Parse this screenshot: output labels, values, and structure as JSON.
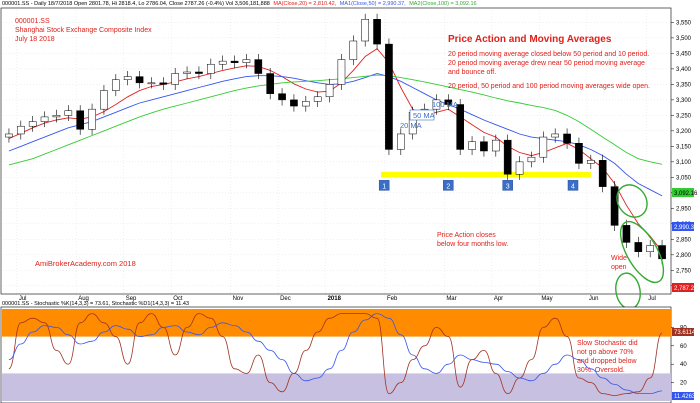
{
  "header": {
    "line1": "000001.SS - Daily 18/7/2018 Open 2801.78, Hi 2818.4, Lo 2786.04, Close 2787.26 (-0.4%) Vol 3,506,181,888",
    "ma20": "MA(Close,20) = 2,810.42,",
    "ma50": "MA1(Close,50) = 2,990.37,",
    "ma100": "MA2(Close,100) = 3,092.16",
    "lower": "000001.SS - Stochastic %K(14,3,3) = 73.61, Stochastic %D1(14,3,3) = 11.43"
  },
  "info": {
    "ticker": "000001.SS",
    "name": "Shanghai Stock Exchange Composite Index",
    "date": "July 18 2018"
  },
  "annotations": {
    "title": "Price Action and Moving Averages",
    "p1": "20 period moving average closed below 50 period and 10 period.",
    "p2a": "20 period moving average drew near 50 period moving average",
    "p2b": "and bounce off.",
    "p3": "20 period, 50 period and 100 period moving averages wide open.",
    "ma100": "100 MA",
    "ma50": "50 MA",
    "ma20": "20 MA",
    "pa1": "Price Action closes",
    "pa2": "below four months low.",
    "wide1": "Wide",
    "wide2": "open",
    "stoch1": "Slow Stochastic did",
    "stoch2": "not go above 70%",
    "stoch3": "and dropped below",
    "stoch4": "30%. Oversold.",
    "watermark": "AmiBrokerAcademy.com  2018",
    "markers": [
      "1",
      "2",
      "3",
      "4"
    ]
  },
  "price_axis": {
    "ticks": [
      "3,550",
      "3,500",
      "3,450",
      "3,400",
      "3,350",
      "3,300",
      "3,250",
      "3,200",
      "3,150",
      "3,100",
      "3,050",
      "3,000",
      "2,950",
      "2,900",
      "2,850",
      "2,800",
      "2,750",
      "2,700"
    ],
    "labels": {
      "ma100": "3,092.16",
      "ma50": "2,990.37",
      "close": "2,787.26"
    }
  },
  "stoch_axis": {
    "ticks": [
      "80",
      "60",
      "40",
      "20"
    ],
    "labels": {
      "k": "73.6114",
      "d": "11.4263"
    }
  },
  "x_axis": {
    "labels": [
      "Jul",
      "Aug",
      "Sep",
      "Oct",
      "Nov",
      "Dec",
      "2018",
      "Feb",
      "Mar",
      "Apr",
      "May",
      "Jun",
      "Jul"
    ]
  },
  "colors": {
    "ma20": "#e02020",
    "ma50": "#3355ee",
    "ma100": "#33cc33",
    "support": "#ffff00",
    "overbought": "#ff8c00",
    "oversold": "#c8c0e0",
    "stochK": "#a03020",
    "stochD": "#3355ee",
    "ann": "#e0201a",
    "marker": "#3a6fc8"
  },
  "chart_data": [
    {
      "type": "candlestick",
      "title": "Shanghai Stock Exchange Composite Index",
      "ylim": [
        2680,
        3590
      ],
      "x": [
        "2017-06-26",
        "2017-07-03",
        "2017-07-10",
        "2017-07-17",
        "2017-07-24",
        "2017-07-31",
        "2017-08-07",
        "2017-08-14",
        "2017-08-21",
        "2017-08-28",
        "2017-09-04",
        "2017-09-11",
        "2017-09-18",
        "2017-09-25",
        "2017-10-02",
        "2017-10-09",
        "2017-10-16",
        "2017-10-23",
        "2017-10-30",
        "2017-11-06",
        "2017-11-13",
        "2017-11-20",
        "2017-11-27",
        "2017-12-04",
        "2017-12-11",
        "2017-12-18",
        "2017-12-25",
        "2018-01-01",
        "2018-01-08",
        "2018-01-15",
        "2018-01-22",
        "2018-01-29",
        "2018-02-05",
        "2018-02-12",
        "2018-02-19",
        "2018-02-26",
        "2018-03-05",
        "2018-03-12",
        "2018-03-19",
        "2018-03-26",
        "2018-04-02",
        "2018-04-09",
        "2018-04-16",
        "2018-04-23",
        "2018-04-30",
        "2018-05-07",
        "2018-05-14",
        "2018-05-21",
        "2018-05-28",
        "2018-06-04",
        "2018-06-11",
        "2018-06-18",
        "2018-06-25",
        "2018-07-02",
        "2018-07-09",
        "2018-07-16"
      ],
      "close": [
        3190,
        3215,
        3230,
        3245,
        3250,
        3265,
        3205,
        3270,
        3330,
        3365,
        3375,
        3355,
        3355,
        3350,
        3385,
        3390,
        3385,
        3415,
        3425,
        3420,
        3430,
        3385,
        3320,
        3300,
        3280,
        3295,
        3310,
        3350,
        3430,
        3490,
        3560,
        3480,
        3140,
        3190,
        3260,
        3270,
        3300,
        3285,
        3140,
        3165,
        3135,
        3170,
        3060,
        3100,
        3115,
        3180,
        3190,
        3160,
        3095,
        3105,
        3020,
        2895,
        2840,
        2810,
        2830,
        2787
      ],
      "series": [
        {
          "name": "20 MA",
          "values": [
            3175,
            3192,
            3210,
            3225,
            3235,
            3242,
            3238,
            3245,
            3262,
            3285,
            3310,
            3330,
            3343,
            3350,
            3358,
            3368,
            3375,
            3385,
            3395,
            3403,
            3410,
            3408,
            3395,
            3375,
            3352,
            3335,
            3325,
            3328,
            3355,
            3395,
            3440,
            3465,
            3420,
            3340,
            3270,
            3250,
            3260,
            3270,
            3245,
            3220,
            3195,
            3180,
            3150,
            3130,
            3120,
            3130,
            3145,
            3160,
            3140,
            3110,
            3080,
            3030,
            2960,
            2900,
            2860,
            2810
          ]
        },
        {
          "name": "50 MA",
          "values": [
            3135,
            3150,
            3165,
            3180,
            3195,
            3210,
            3220,
            3230,
            3245,
            3260,
            3275,
            3290,
            3300,
            3310,
            3320,
            3330,
            3340,
            3350,
            3360,
            3368,
            3375,
            3378,
            3378,
            3375,
            3370,
            3362,
            3355,
            3350,
            3352,
            3360,
            3372,
            3385,
            3375,
            3360,
            3340,
            3320,
            3300,
            3285,
            3270,
            3252,
            3235,
            3220,
            3205,
            3190,
            3180,
            3175,
            3170,
            3165,
            3155,
            3140,
            3120,
            3095,
            3060,
            3030,
            3010,
            2990
          ]
        },
        {
          "name": "100 MA",
          "values": [
            3090,
            3100,
            3110,
            3125,
            3140,
            3155,
            3170,
            3185,
            3200,
            3215,
            3230,
            3245,
            3258,
            3270,
            3280,
            3290,
            3300,
            3310,
            3320,
            3330,
            3338,
            3345,
            3350,
            3355,
            3358,
            3360,
            3362,
            3365,
            3368,
            3372,
            3376,
            3380,
            3378,
            3372,
            3365,
            3358,
            3350,
            3342,
            3333,
            3325,
            3316,
            3306,
            3297,
            3290,
            3282,
            3275,
            3266,
            3250,
            3230,
            3205,
            3180,
            3155,
            3130,
            3110,
            3100,
            3092
          ]
        }
      ],
      "support_range": [
        3050,
        3068
      ],
      "markers": [
        "1",
        "2",
        "3",
        "4"
      ],
      "annotations": [
        "100 MA",
        "50 MA",
        "20 MA",
        "Wide open",
        "Price Action closes below four months low."
      ]
    },
    {
      "type": "line",
      "title": "Stochastic",
      "ylim": [
        0,
        100
      ],
      "overbought": 70,
      "oversold": 30,
      "series": [
        {
          "name": "Stochastic %K(14,3,3)",
          "values": [
            35,
            85,
            90,
            85,
            55,
            40,
            85,
            95,
            85,
            70,
            40,
            85,
            95,
            80,
            50,
            80,
            95,
            90,
            70,
            35,
            30,
            50,
            20,
            10,
            30,
            55,
            75,
            90,
            95,
            95,
            95,
            90,
            8,
            20,
            45,
            60,
            80,
            70,
            15,
            45,
            55,
            30,
            8,
            25,
            45,
            80,
            90,
            70,
            25,
            20,
            8,
            6,
            8,
            10,
            25,
            74
          ]
        },
        {
          "name": "Stochastic %D(14,3,3)",
          "values": [
            45,
            62,
            75,
            82,
            80,
            72,
            62,
            65,
            75,
            82,
            78,
            70,
            72,
            80,
            82,
            75,
            72,
            80,
            85,
            82,
            75,
            65,
            55,
            45,
            30,
            22,
            25,
            35,
            55,
            75,
            88,
            95,
            90,
            72,
            50,
            35,
            30,
            40,
            50,
            45,
            42,
            40,
            32,
            25,
            22,
            30,
            40,
            50,
            45,
            35,
            25,
            18,
            12,
            8,
            8,
            11
          ]
        }
      ],
      "annotations": [
        "Slow Stochastic did not go above 70% and dropped below 30%. Oversold."
      ]
    }
  ]
}
